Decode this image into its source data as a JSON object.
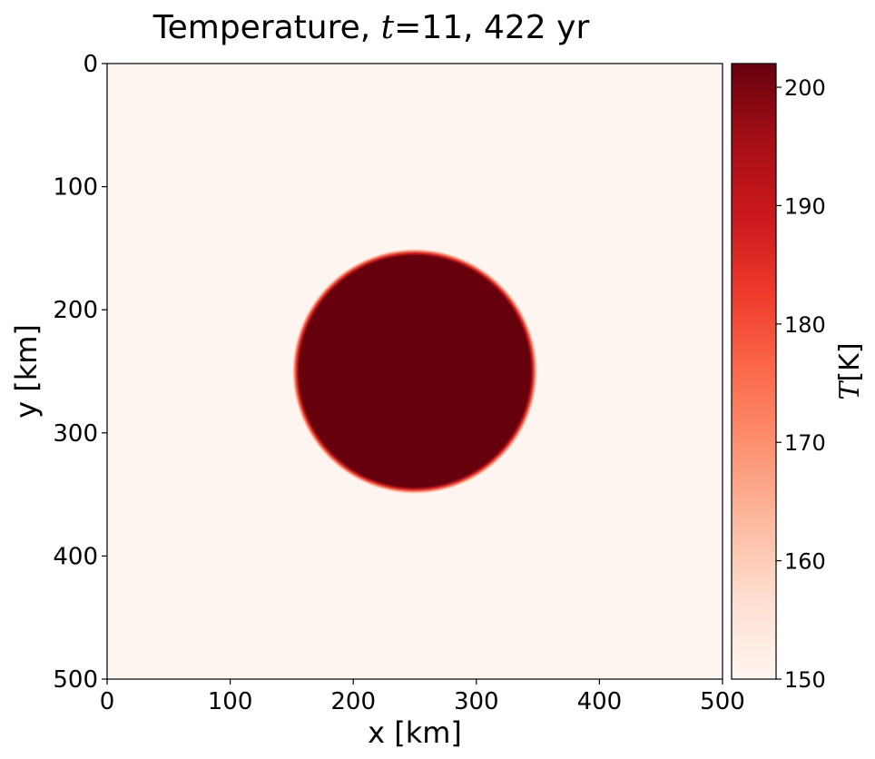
{
  "chart_data": {
    "type": "heatmap",
    "title": {
      "prefix": "Temperature, ",
      "math_var": "t",
      "math_eq": "=11, 422 yr"
    },
    "xlabel": "x [km]",
    "ylabel": "y [km]",
    "xlim": [
      0,
      500
    ],
    "ylim": [
      500,
      0
    ],
    "y_axis_inverted": true,
    "x_ticks": [
      0,
      100,
      200,
      300,
      400,
      500
    ],
    "y_ticks": [
      0,
      100,
      200,
      300,
      400,
      500
    ],
    "grid": false,
    "field": {
      "description_shape": "disk",
      "center_km": [
        250,
        250
      ],
      "radius_km": 97,
      "edge_width_km": 3,
      "inside_value_K": 202,
      "background_value_K": 150
    },
    "colorbar": {
      "colormap": "Reds",
      "vmin": 150,
      "vmax": 202,
      "ticks": [
        150,
        160,
        170,
        180,
        190,
        200
      ],
      "label_var": "T",
      "label_unit": "[K]",
      "colormap_stops": [
        "#fff5f0",
        "#fee0d2",
        "#fcbba1",
        "#fc9272",
        "#fb6a4a",
        "#ef3b2c",
        "#cb181d",
        "#a50f15",
        "#67000d"
      ]
    }
  }
}
